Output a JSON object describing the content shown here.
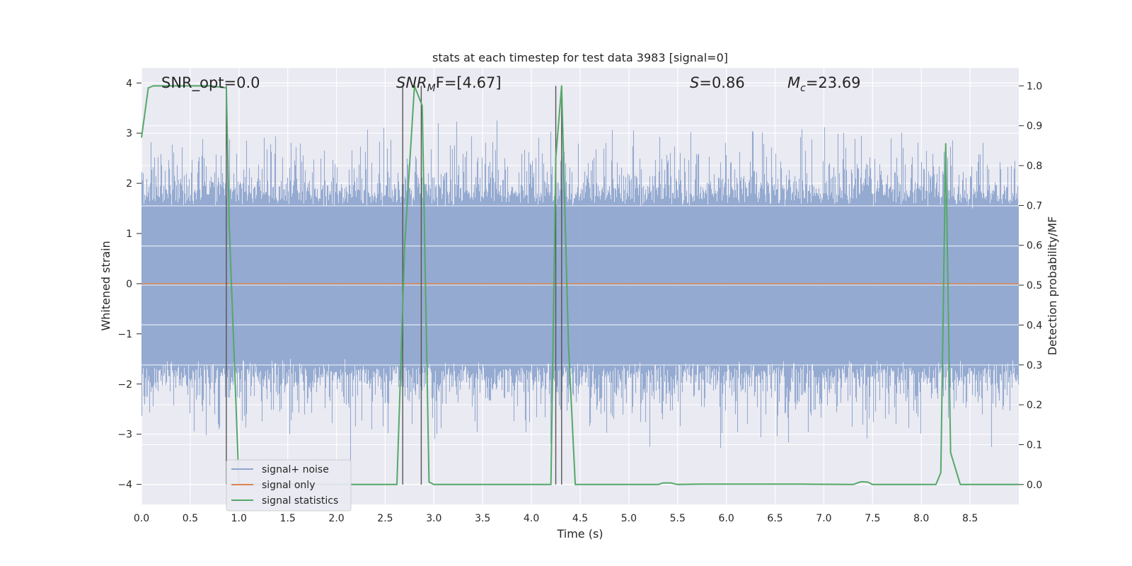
{
  "chart_data": {
    "type": "line",
    "title": "stats at each timestep for test data 3983 [signal=0]",
    "xlabel": "Time (s)",
    "ylabel": "Whitened strain",
    "ylabel_right": "Detection probability/MF",
    "xlim": [
      0,
      9.0
    ],
    "ylim": [
      -4.4,
      4.3
    ],
    "ylim_right": [
      -0.05,
      1.045
    ],
    "x_ticks": [
      0.0,
      0.5,
      1.0,
      1.5,
      2.0,
      2.5,
      3.0,
      3.5,
      4.0,
      4.5,
      5.0,
      5.5,
      6.0,
      6.5,
      7.0,
      7.5,
      8.0,
      8.5
    ],
    "x_tick_labels": [
      "0.0",
      "0.5",
      "1.0",
      "1.5",
      "2.0",
      "2.5",
      "3.0",
      "3.5",
      "4.0",
      "4.5",
      "5.0",
      "5.5",
      "6.0",
      "6.5",
      "7.0",
      "7.5",
      "8.0",
      "8.5"
    ],
    "y_ticks": [
      -4,
      -3,
      -2,
      -1,
      0,
      1,
      2,
      3,
      4
    ],
    "y_tick_labels": [
      "−4",
      "−3",
      "−2",
      "−1",
      "0",
      "1",
      "2",
      "3",
      "4"
    ],
    "y_right_ticks": [
      0.0,
      0.1,
      0.2,
      0.3,
      0.4,
      0.5,
      0.6,
      0.7,
      0.8,
      0.9,
      1.0
    ],
    "y_right_tick_labels": [
      "0.0",
      "0.1",
      "0.2",
      "0.3",
      "0.4",
      "0.5",
      "0.6",
      "0.7",
      "0.8",
      "0.9",
      "1.0"
    ],
    "grid": true,
    "legend_position": "lower-left",
    "annotations": {
      "snr_opt": "SNR_opt=0.0",
      "snr_mf_prefix": "SNR",
      "snr_mf_sub": "M",
      "snr_mf_suffix": "F=[4.67]",
      "s_var": "S",
      "s_value": "=0.86",
      "mc_var": "M",
      "mc_sub": "c",
      "mc_value": "=23.69"
    },
    "series": [
      {
        "name": "signal+ noise",
        "color": "#8fa6cf",
        "noise_envelope": {
          "typical_amplitude": 1.55,
          "peak_max": 3.9,
          "peak_min": -4.0
        }
      },
      {
        "name": "signal only",
        "color": "#dd8452",
        "y_constant": 0
      },
      {
        "name": "signal statistics",
        "color": "#55a868",
        "axis": "right",
        "x": [
          0.0,
          0.07,
          0.12,
          0.3,
          0.5,
          0.7,
          0.87,
          0.9,
          1.0,
          2.62,
          2.7,
          2.8,
          2.88,
          2.95,
          3.0,
          4.2,
          4.25,
          4.31,
          4.38,
          4.45,
          5.3,
          5.35,
          5.43,
          5.5,
          5.73,
          6.8,
          7.3,
          7.38,
          7.45,
          7.5,
          8.15,
          8.2,
          8.25,
          8.3,
          8.4,
          9.0
        ],
        "y": [
          0.87,
          0.995,
          1.0,
          1.0,
          1.0,
          1.0,
          0.995,
          0.65,
          0.0,
          0.0,
          0.6,
          1.0,
          0.95,
          0.006,
          0.0,
          0.0,
          0.82,
          1.0,
          0.35,
          0.0,
          0.0,
          0.004,
          0.004,
          0.0,
          0.001,
          0.001,
          0.0,
          0.007,
          0.006,
          0.0,
          0.0,
          0.03,
          0.855,
          0.08,
          0.0,
          0.0
        ]
      }
    ],
    "vertical_lines": {
      "color": "#555555",
      "x": [
        0.87,
        2.68,
        2.87,
        4.25,
        4.31
      ]
    }
  }
}
